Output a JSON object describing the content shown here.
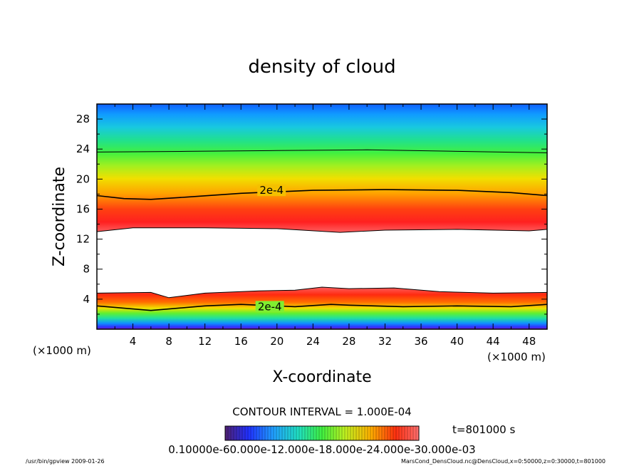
{
  "chart_data": {
    "type": "heatmap",
    "title": "density of cloud",
    "xlabel": "X-coordinate",
    "ylabel": "Z-coordinate",
    "x_unit": "(×1000 m)",
    "y_unit": "(×1000 m)",
    "xlim": [
      0,
      50
    ],
    "ylim": [
      0,
      30
    ],
    "x_ticks": [
      4,
      8,
      12,
      16,
      20,
      24,
      28,
      32,
      36,
      40,
      44,
      48
    ],
    "y_ticks": [
      4,
      8,
      12,
      16,
      20,
      24,
      28
    ],
    "contour_interval_text": "CONTOUR INTERVAL = 1.000E-04",
    "time_text": "t=801000 s",
    "colorbar_text": "0.10000e-60.000e-12.000e-18.000e-24.000e-30.000e-03",
    "footer_left": "/usr/bin/gpview   2009-01-26",
    "footer_right": "MarsCond_DensCloud.nc@DensCloud,x=0:50000,z=0:30000,t=801000",
    "contour_labels": [
      {
        "text": "2e-4",
        "x": 19.4,
        "z": 18.5
      },
      {
        "text": "2e-4",
        "x": 19.2,
        "z": 3.0
      }
    ],
    "contours": [
      {
        "name": "upper-1e-4",
        "points": [
          [
            0,
            23.6
          ],
          [
            10,
            23.7
          ],
          [
            20,
            23.8
          ],
          [
            30,
            23.9
          ],
          [
            40,
            23.7
          ],
          [
            50,
            23.5
          ]
        ]
      },
      {
        "name": "upper-2e-4",
        "points": [
          [
            0,
            17.8
          ],
          [
            3,
            17.4
          ],
          [
            6,
            17.3
          ],
          [
            10,
            17.6
          ],
          [
            16,
            18.1
          ],
          [
            24,
            18.5
          ],
          [
            32,
            18.6
          ],
          [
            40,
            18.5
          ],
          [
            46,
            18.2
          ],
          [
            50,
            17.8
          ]
        ]
      },
      {
        "name": "band-bottom",
        "points": [
          [
            0,
            13.0
          ],
          [
            4,
            13.5
          ],
          [
            12,
            13.5
          ],
          [
            20,
            13.4
          ],
          [
            27,
            12.9
          ],
          [
            32,
            13.2
          ],
          [
            40,
            13.3
          ],
          [
            48,
            13.1
          ],
          [
            50,
            13.3
          ]
        ]
      },
      {
        "name": "lower-top",
        "points": [
          [
            0,
            4.8
          ],
          [
            6,
            4.9
          ],
          [
            8,
            4.2
          ],
          [
            12,
            4.8
          ],
          [
            18,
            5.1
          ],
          [
            22,
            5.2
          ],
          [
            25,
            5.6
          ],
          [
            28,
            5.4
          ],
          [
            33,
            5.5
          ],
          [
            38,
            5.0
          ],
          [
            44,
            4.8
          ],
          [
            50,
            4.9
          ]
        ]
      },
      {
        "name": "lower-2e-4",
        "points": [
          [
            0,
            3.1
          ],
          [
            6,
            2.5
          ],
          [
            12,
            3.1
          ],
          [
            16,
            3.3
          ],
          [
            22,
            3.0
          ],
          [
            26,
            3.3
          ],
          [
            28,
            3.2
          ],
          [
            34,
            3.0
          ],
          [
            40,
            3.1
          ],
          [
            46,
            3.0
          ],
          [
            50,
            3.3
          ]
        ]
      }
    ]
  }
}
